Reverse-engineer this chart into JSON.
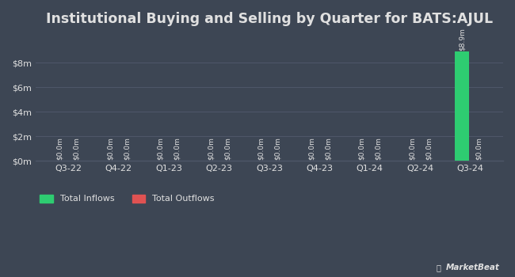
{
  "title": "Institutional Buying and Selling by Quarter for BATS:AJUL",
  "quarters": [
    "Q3-22",
    "Q4-22",
    "Q1-23",
    "Q2-23",
    "Q3-23",
    "Q4-23",
    "Q1-24",
    "Q2-24",
    "Q3-24"
  ],
  "inflows": [
    0.0,
    0.0,
    0.0,
    0.0,
    0.0,
    0.0,
    0.0,
    0.0,
    8.9
  ],
  "outflows": [
    0.0,
    0.0,
    0.0,
    0.0,
    0.0,
    0.0,
    0.0,
    0.0,
    0.0
  ],
  "inflow_color": "#2ecc71",
  "outflow_color": "#e05252",
  "background_color": "#3d4654",
  "plot_bg_color": "#3d4654",
  "grid_color": "#4e5668",
  "text_color": "#e0e0e0",
  "title_fontsize": 12.5,
  "tick_fontsize": 8,
  "bar_label_fontsize": 6.5,
  "ylim": [
    0,
    10
  ],
  "yticks": [
    0,
    2,
    4,
    6,
    8
  ],
  "ytick_labels": [
    "$0m",
    "$2m",
    "$4m",
    "$6m",
    "$8m"
  ],
  "bar_width": 0.28,
  "bar_gap": 0.05,
  "legend_inflow": "Total Inflows",
  "legend_outflow": "Total Outflows"
}
